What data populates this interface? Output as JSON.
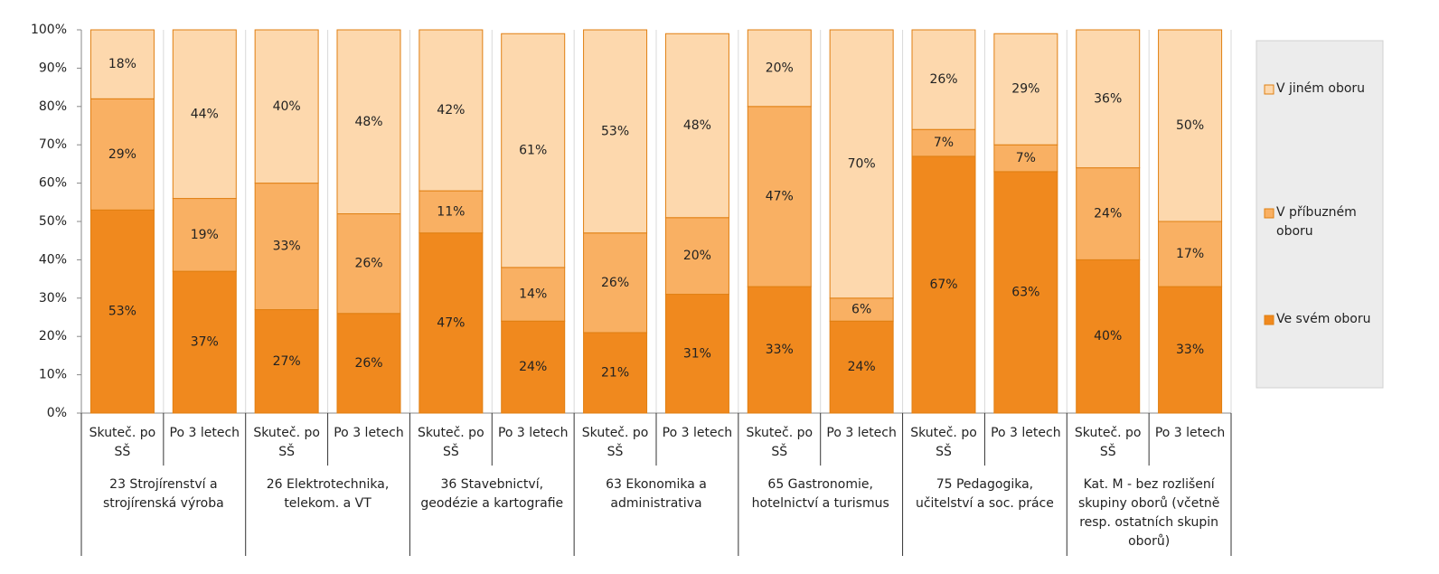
{
  "chart_data": {
    "type": "bar",
    "stacked": true,
    "categories": [
      "Skuteč. po SŠ",
      "Po 3 letech",
      "Skuteč. po SŠ",
      "Po 3 letech",
      "Skuteč. po SŠ",
      "Po 3 letech",
      "Skuteč. po SŠ",
      "Po 3 letech",
      "Skuteč. po SŠ",
      "Po 3 letech",
      "Skuteč. po SŠ",
      "Po 3 letech",
      "Skuteč. po SŠ",
      "Po 3 letech"
    ],
    "groups": [
      "23 Strojírenství a strojírenská výroba",
      "26 Elektrotechnika, telekom. a VT",
      "36 Stavebnictví, geodézie a kartografie",
      "63 Ekonomika a administrativa",
      "65 Gastronomie, hotelnictví a turismus",
      "75 Pedagogika, učitelství a soc. práce",
      "Kat. M - bez rozlišení skupiny oborů (včetně resp. ostatních skupin oborů)"
    ],
    "series": [
      {
        "name": "Ve svém oboru",
        "color": "#f0891e",
        "values": [
          53,
          37,
          27,
          26,
          47,
          24,
          21,
          31,
          33,
          24,
          67,
          63,
          40,
          33
        ],
        "value_labels": [
          "53%",
          "37%",
          "27%",
          "26%",
          "47%",
          "24%",
          "21%",
          "31%",
          "33%",
          "24%",
          "67%",
          "63%",
          "40%",
          "33%"
        ]
      },
      {
        "name": "V příbuzném oboru",
        "color": "#f9b063",
        "values": [
          29,
          19,
          33,
          26,
          11,
          14,
          26,
          20,
          47,
          6,
          7,
          7,
          24,
          17
        ],
        "value_labels": [
          "29%",
          "19%",
          "33%",
          "26%",
          "11%",
          "14%",
          "26%",
          "20%",
          "47%",
          "6%",
          "7%",
          "7%",
          "24%",
          "17%"
        ]
      },
      {
        "name": "V jiném oboru",
        "color": "#fdd8ad",
        "values": [
          18,
          44,
          40,
          48,
          42,
          61,
          53,
          48,
          20,
          70,
          26,
          29,
          36,
          50
        ],
        "value_labels": [
          "18%",
          "44%",
          "40%",
          "48%",
          "42%",
          "61%",
          "53%",
          "48%",
          "20%",
          "70%",
          "26%",
          "29%",
          "36%",
          "50%"
        ]
      }
    ],
    "ylim": [
      0,
      100
    ],
    "yticks": [
      {
        "value": 0,
        "label": "0%"
      },
      {
        "value": 10,
        "label": "10%"
      },
      {
        "value": 20,
        "label": "20%"
      },
      {
        "value": 30,
        "label": "30%"
      },
      {
        "value": 40,
        "label": "40%"
      },
      {
        "value": 50,
        "label": "50%"
      },
      {
        "value": 60,
        "label": "60%"
      },
      {
        "value": 70,
        "label": "70%"
      },
      {
        "value": 80,
        "label": "80%"
      },
      {
        "value": 90,
        "label": "90%"
      },
      {
        "value": 100,
        "label": "100%"
      }
    ],
    "legend": "right"
  }
}
